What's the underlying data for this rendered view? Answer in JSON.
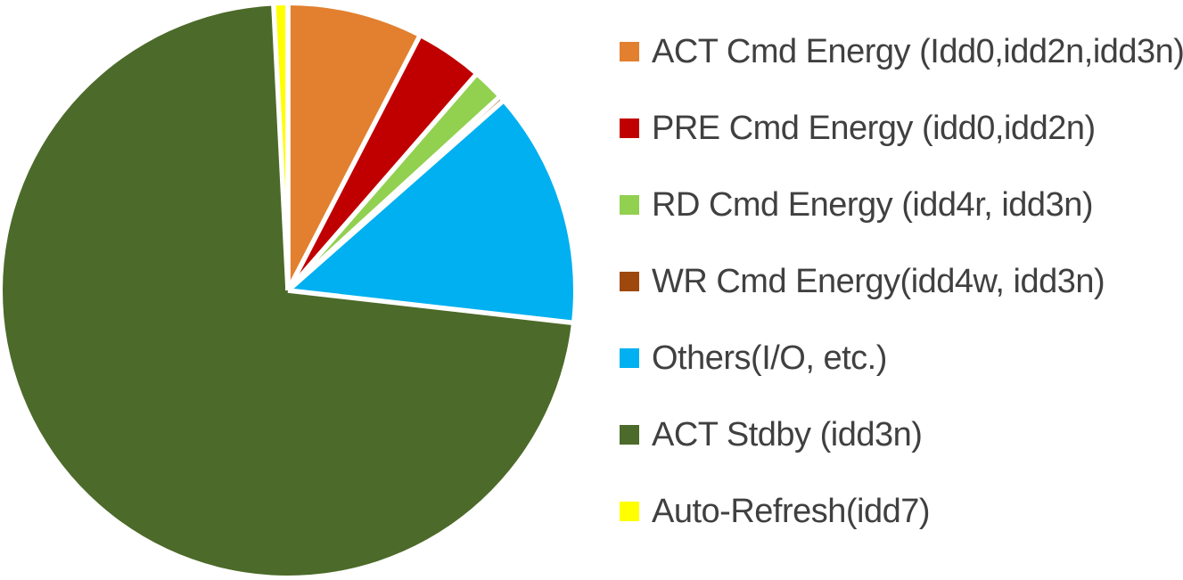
{
  "chart_data": {
    "type": "pie",
    "title": "",
    "legend_position": "right",
    "start_angle_deg": 0,
    "direction": "clockwise",
    "gap_color": "#ffffff",
    "text_color": "#404040",
    "slices": [
      {
        "label": "ACT Cmd Energy (Idd0,idd2n,idd3n)",
        "value_pct": 7.6,
        "color": "#E2802F"
      },
      {
        "label": "PRE Cmd Energy (idd0,idd2n)",
        "value_pct": 3.8,
        "color": "#C00000"
      },
      {
        "label": "RD Cmd Energy (idd4r, idd3n)",
        "value_pct": 1.8,
        "color": "#92D050"
      },
      {
        "label": "WR Cmd Energy(idd4w, idd3n)",
        "value_pct": 0.3,
        "color": "#9E480E"
      },
      {
        "label": "Others(I/O, etc.)",
        "value_pct": 13.3,
        "color": "#00B0F0"
      },
      {
        "label": "ACT Stdby (idd3n)",
        "value_pct": 72.4,
        "color": "#4C6A29"
      },
      {
        "label": "Auto-Refresh(idd7)",
        "value_pct": 0.8,
        "color": "#FFFF00"
      }
    ]
  }
}
